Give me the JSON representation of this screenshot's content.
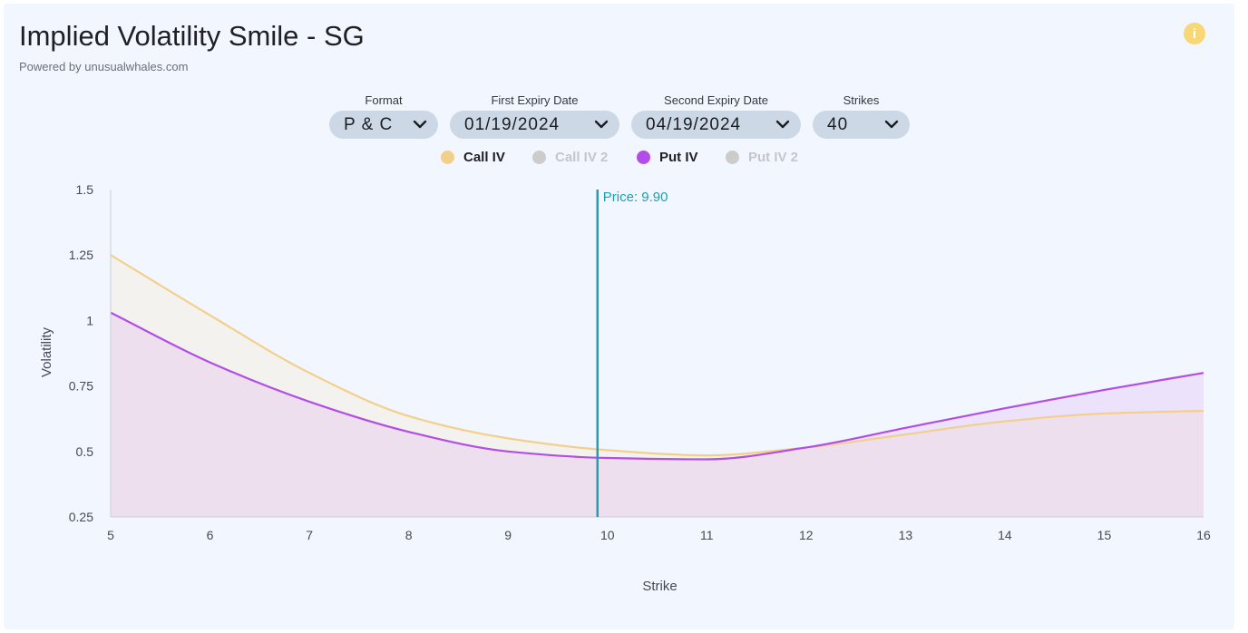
{
  "header": {
    "title": "Implied Volatility Smile - SG",
    "subtitle": "Powered by unusualwhales.com",
    "info_icon": "info-icon",
    "info_glyph": "i"
  },
  "controls": {
    "format": {
      "label": "Format",
      "value": "P & C"
    },
    "first_expiry": {
      "label": "First Expiry Date",
      "value": "01/19/2024"
    },
    "second_expiry": {
      "label": "Second Expiry Date",
      "value": "04/19/2024"
    },
    "strikes": {
      "label": "Strikes",
      "value": "40"
    }
  },
  "legend": [
    {
      "label": "Call IV",
      "color": "#f3cf8c",
      "active": true
    },
    {
      "label": "Call IV 2",
      "color": "#cccccc",
      "active": false
    },
    {
      "label": "Put IV",
      "color": "#b04ee6",
      "active": true
    },
    {
      "label": "Put IV 2",
      "color": "#cccccc",
      "active": false
    }
  ],
  "colors": {
    "call": "#f3cf8c",
    "put": "#b04ee6",
    "price_line": "#1aa1b4",
    "axis": "#c9cfdc",
    "tick_text": "#444a55"
  },
  "chart_data": {
    "type": "area",
    "xlabel": "Strike",
    "ylabel": "Volatility",
    "xlim": [
      5,
      16
    ],
    "ylim": [
      0.25,
      1.5
    ],
    "x_ticks": [
      5,
      6,
      7,
      8,
      9,
      10,
      11,
      12,
      13,
      14,
      15,
      16
    ],
    "y_ticks": [
      0.25,
      0.5,
      0.75,
      1,
      1.25,
      1.5
    ],
    "y_tick_labels": [
      "0.25",
      "0.5",
      "0.75",
      "1",
      "1.25",
      "1.5"
    ],
    "price": 9.9,
    "price_label": "Price: 9.90",
    "grid": false,
    "legend_position": "top-center",
    "series": [
      {
        "name": "Call IV",
        "x": [
          5,
          6,
          7,
          8,
          9,
          10,
          11,
          12,
          13,
          14,
          15,
          16
        ],
        "values": [
          1.25,
          1.02,
          0.8,
          0.635,
          0.55,
          0.505,
          0.485,
          0.515,
          0.565,
          0.615,
          0.645,
          0.655
        ]
      },
      {
        "name": "Put IV",
        "x": [
          5,
          6,
          7,
          8,
          9,
          10,
          11,
          12,
          13,
          14,
          15,
          16
        ],
        "values": [
          1.03,
          0.84,
          0.69,
          0.575,
          0.5,
          0.475,
          0.47,
          0.515,
          0.59,
          0.665,
          0.735,
          0.8
        ]
      }
    ]
  }
}
